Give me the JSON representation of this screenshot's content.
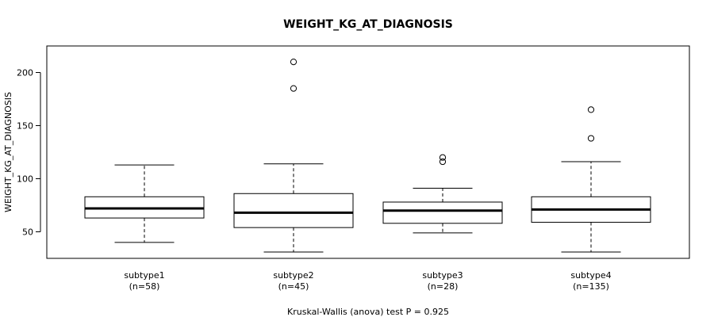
{
  "chart_data": {
    "type": "box",
    "title": "WEIGHT_KG_AT_DIAGNOSIS",
    "ylabel": "WEIGHT_KG_AT_DIAGNOSIS",
    "xlabel": "",
    "ylim": [
      25,
      225
    ],
    "yticks": [
      50,
      100,
      150,
      200
    ],
    "grid": false,
    "categories": [
      "subtype1",
      "subtype2",
      "subtype3",
      "subtype4"
    ],
    "counts": [
      "(n=58)",
      "(n=45)",
      "(n=28)",
      "(n=135)"
    ],
    "boxes": [
      {
        "whisker_low": 40,
        "q1": 63,
        "median": 72,
        "q3": 83,
        "whisker_high": 113,
        "outliers": []
      },
      {
        "whisker_low": 31,
        "q1": 54,
        "median": 68,
        "q3": 86,
        "whisker_high": 114,
        "outliers": [
          185,
          210
        ]
      },
      {
        "whisker_low": 49,
        "q1": 58,
        "median": 70,
        "q3": 78,
        "whisker_high": 91,
        "outliers": [
          116,
          120
        ]
      },
      {
        "whisker_low": 31,
        "q1": 59,
        "median": 71,
        "q3": 83,
        "whisker_high": 116,
        "outliers": [
          138,
          165
        ]
      }
    ],
    "footnote": "Kruskal-Wallis (anova) test P = 0.925"
  }
}
